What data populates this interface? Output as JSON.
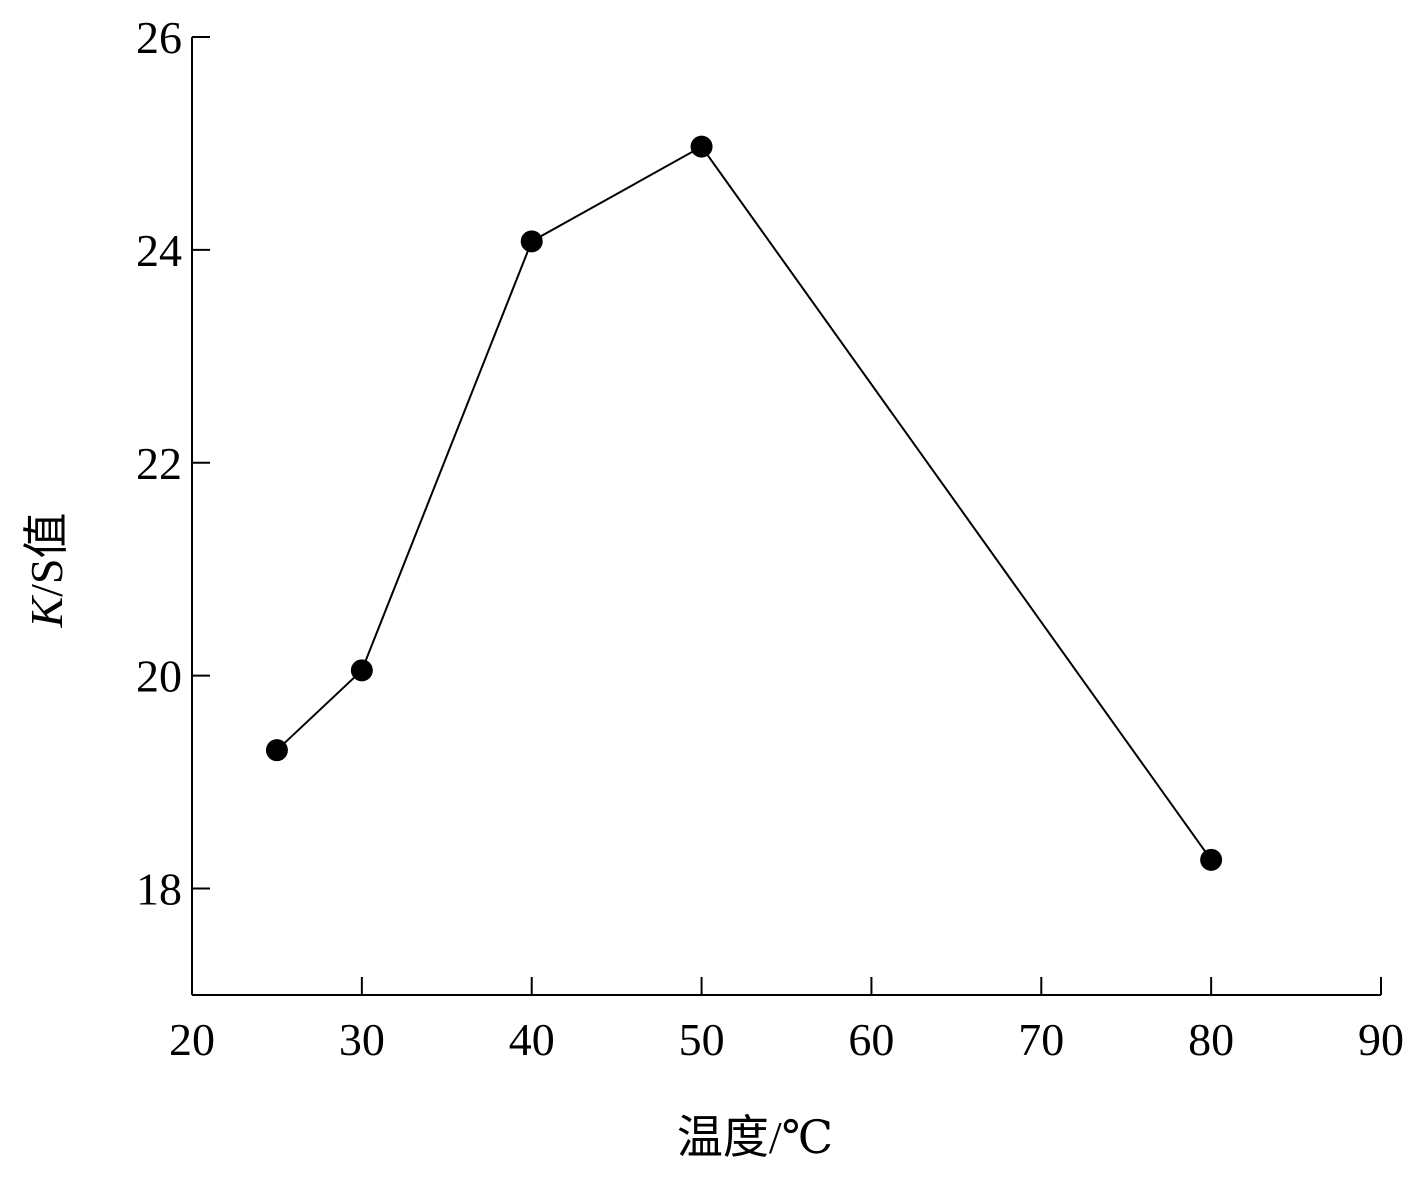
{
  "chart_data": {
    "type": "line",
    "title": "",
    "xlabel": "温度/℃",
    "ylabel_italic": "K",
    "ylabel_rest": "/S值",
    "xlim": [
      20,
      90
    ],
    "ylim": [
      17,
      26
    ],
    "xticks": [
      20,
      30,
      40,
      50,
      60,
      70,
      80,
      90
    ],
    "yticks": [
      18,
      20,
      22,
      24,
      26
    ],
    "grid": false,
    "legend": "none",
    "series": [
      {
        "x": [
          25,
          30,
          40,
          50,
          80
        ],
        "y": [
          19.3,
          20.05,
          24.08,
          24.97,
          18.27
        ],
        "color": "#000000",
        "marker": "circle"
      }
    ]
  }
}
